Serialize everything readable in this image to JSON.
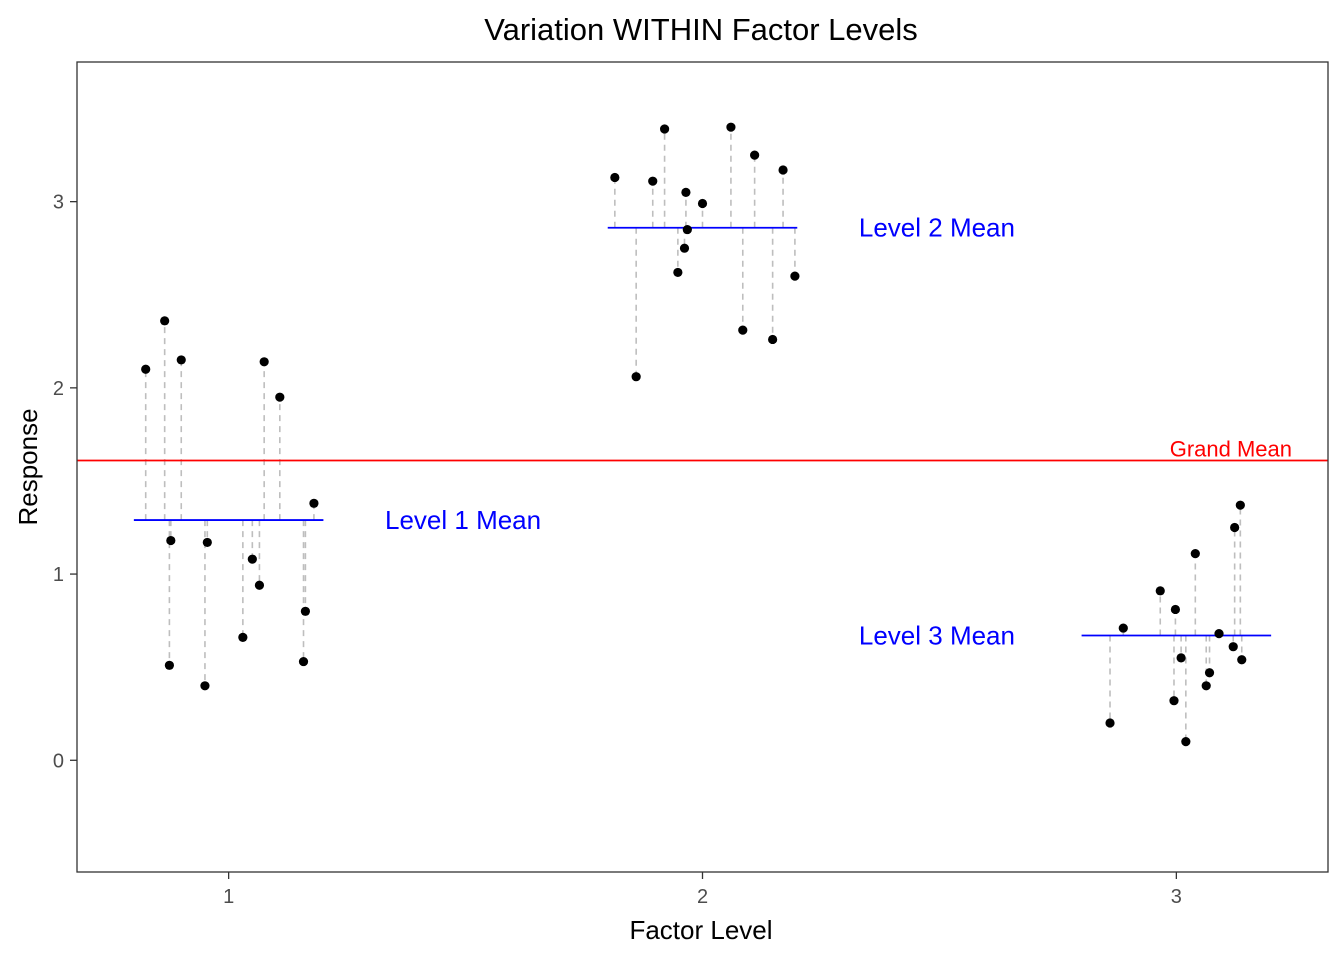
{
  "chart_data": {
    "type": "scatter",
    "title": "Variation WITHIN Factor Levels",
    "xlabel": "Factor Level",
    "ylabel": "Response",
    "xlim": [
      0.68,
      3.32
    ],
    "ylim": [
      -0.6,
      3.75
    ],
    "x_ticks": [
      1,
      2,
      3
    ],
    "x_tick_labels": [
      "1",
      "2",
      "3"
    ],
    "y_ticks": [
      0,
      1,
      2,
      3
    ],
    "y_tick_labels": [
      "0",
      "1",
      "2",
      "3"
    ],
    "grid": false,
    "grand_mean": {
      "value": 1.61,
      "label": "Grand Mean",
      "color": "#ff0000"
    },
    "levels": [
      {
        "level": 1,
        "mean": 1.29,
        "mean_label": "Level 1 Mean",
        "color": "#0000ff",
        "mean_line_x": [
          0.8,
          1.2
        ],
        "label_x": 1.33,
        "points": [
          {
            "x": 0.825,
            "y": 2.1
          },
          {
            "x": 0.865,
            "y": 2.36
          },
          {
            "x": 0.875,
            "y": 0.51
          },
          {
            "x": 0.878,
            "y": 1.18
          },
          {
            "x": 0.9,
            "y": 2.15
          },
          {
            "x": 0.95,
            "y": 0.4
          },
          {
            "x": 0.955,
            "y": 1.17
          },
          {
            "x": 1.03,
            "y": 0.66
          },
          {
            "x": 1.05,
            "y": 1.08
          },
          {
            "x": 1.065,
            "y": 0.94
          },
          {
            "x": 1.075,
            "y": 2.14
          },
          {
            "x": 1.108,
            "y": 1.95
          },
          {
            "x": 1.158,
            "y": 0.53
          },
          {
            "x": 1.162,
            "y": 0.8
          },
          {
            "x": 1.18,
            "y": 1.38
          }
        ]
      },
      {
        "level": 2,
        "mean": 2.86,
        "mean_label": "Level 2 Mean",
        "color": "#0000ff",
        "mean_line_x": [
          1.8,
          2.2
        ],
        "label_x": 2.33,
        "points": [
          {
            "x": 1.815,
            "y": 3.13
          },
          {
            "x": 1.86,
            "y": 2.06
          },
          {
            "x": 1.895,
            "y": 3.11
          },
          {
            "x": 1.92,
            "y": 3.39
          },
          {
            "x": 1.948,
            "y": 2.62
          },
          {
            "x": 1.962,
            "y": 2.75
          },
          {
            "x": 1.965,
            "y": 3.05
          },
          {
            "x": 1.968,
            "y": 2.85
          },
          {
            "x": 2.0,
            "y": 2.99
          },
          {
            "x": 2.06,
            "y": 3.4
          },
          {
            "x": 2.085,
            "y": 2.31
          },
          {
            "x": 2.11,
            "y": 3.25
          },
          {
            "x": 2.148,
            "y": 2.26
          },
          {
            "x": 2.17,
            "y": 3.17
          },
          {
            "x": 2.195,
            "y": 2.6
          }
        ]
      },
      {
        "level": 3,
        "mean": 0.67,
        "mean_label": "Level 3 Mean",
        "color": "#0000ff",
        "mean_line_x": [
          2.8,
          3.2
        ],
        "label_x": 2.33,
        "points": [
          {
            "x": 2.86,
            "y": 0.2
          },
          {
            "x": 2.888,
            "y": 0.71
          },
          {
            "x": 2.966,
            "y": 0.91
          },
          {
            "x": 2.995,
            "y": 0.32
          },
          {
            "x": 2.998,
            "y": 0.81
          },
          {
            "x": 3.01,
            "y": 0.55
          },
          {
            "x": 3.02,
            "y": 0.1
          },
          {
            "x": 3.04,
            "y": 1.11
          },
          {
            "x": 3.063,
            "y": 0.4
          },
          {
            "x": 3.07,
            "y": 0.47
          },
          {
            "x": 3.09,
            "y": 0.68
          },
          {
            "x": 3.12,
            "y": 0.61
          },
          {
            "x": 3.123,
            "y": 1.25
          },
          {
            "x": 3.135,
            "y": 1.37
          },
          {
            "x": 3.138,
            "y": 0.54
          }
        ]
      }
    ],
    "residual_line_color": "#bebebe",
    "point_color": "#000000"
  }
}
